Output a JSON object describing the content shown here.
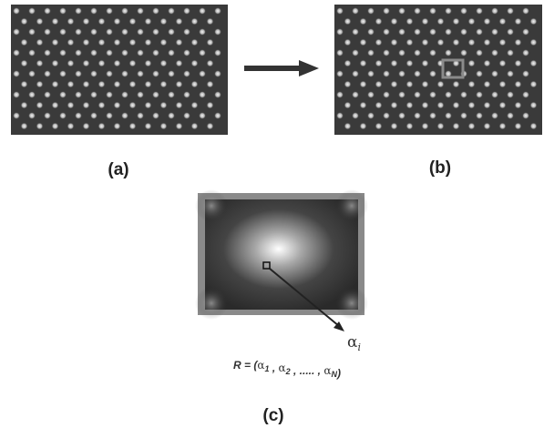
{
  "panels": [
    {
      "label": "(a)"
    },
    {
      "label": "(b)"
    },
    {
      "label": "(c)"
    }
  ],
  "annotation": {
    "base": "α",
    "sub": "i"
  },
  "formula": {
    "lhs": "R = (",
    "terms": [
      {
        "base": "α",
        "sub": "1"
      },
      {
        "base": "α",
        "sub": "2"
      },
      {
        "text": "....."
      },
      {
        "base": "α",
        "sub": "N"
      }
    ],
    "separator": " , ",
    "close": ")"
  }
}
